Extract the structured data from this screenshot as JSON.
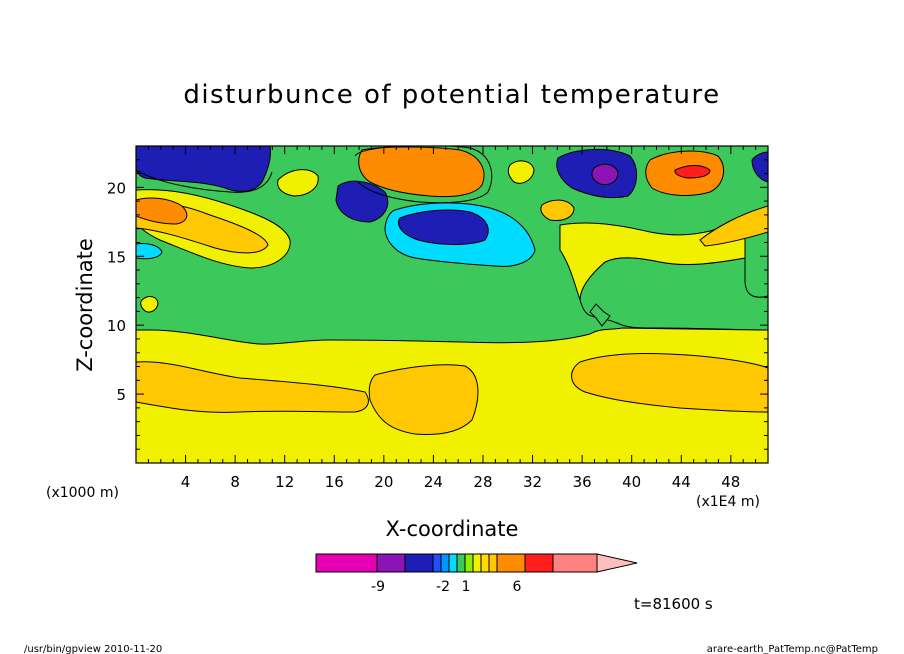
{
  "chart_data": {
    "type": "heatmap",
    "title": "disturbunce of potential temperature",
    "xlabel": "X-coordinate",
    "ylabel": "Z-coordinate",
    "x_unit": "(x1E4 m)",
    "y_unit": "(x1000 m)",
    "xlim": [
      0,
      51
    ],
    "ylim": [
      0,
      23
    ],
    "x_ticks": [
      4,
      8,
      12,
      16,
      20,
      24,
      28,
      32,
      36,
      40,
      44,
      48
    ],
    "y_ticks": [
      5,
      10,
      15,
      20
    ],
    "time_label": "t=81600 s",
    "colorbar": {
      "tick_labels": [
        "-9",
        "-2",
        "1",
        "6"
      ],
      "colors": [
        "#e600b4",
        "#8c14b4",
        "#1e1eb4",
        "#1e50ff",
        "#0096ff",
        "#00dcff",
        "#3cc85a",
        "#8cf000",
        "#f0f000",
        "#ffdc00",
        "#ffc800",
        "#ff8c00",
        "#ff1e1e",
        "#ff8282",
        "#ffbebe"
      ]
    },
    "regions": [
      {
        "level": "-2 to 1 (green)",
        "x_range": [
          0,
          51
        ],
        "z_range": [
          10,
          23
        ]
      },
      {
        "level": "1 to 2 (yellow)",
        "x_range": [
          0,
          51
        ],
        "z_range": [
          0,
          10
        ]
      },
      {
        "level": "2 to 3 (orange-yellow)",
        "x_range": [
          1,
          19
        ],
        "z_range": [
          3.5,
          6.5
        ]
      },
      {
        "level": "2 to 3 (orange-yellow)",
        "x_range": [
          19,
          28
        ],
        "z_range": [
          2.5,
          7
        ]
      },
      {
        "level": "2 to 3 (orange-yellow)",
        "x_range": [
          35,
          51
        ],
        "z_range": [
          4.5,
          8
        ]
      },
      {
        "level": "-9 (min)",
        "x_range": [
          37,
          39.5
        ],
        "z_range": [
          20,
          21.5
        ]
      },
      {
        "level": "6 (max)",
        "x_range": [
          44,
          48
        ],
        "z_range": [
          20.5,
          21.5
        ]
      }
    ]
  },
  "footer": {
    "left": "/usr/bin/gpview  2010-11-20",
    "right": "arare-earth_PatTemp.nc@PatTemp"
  }
}
